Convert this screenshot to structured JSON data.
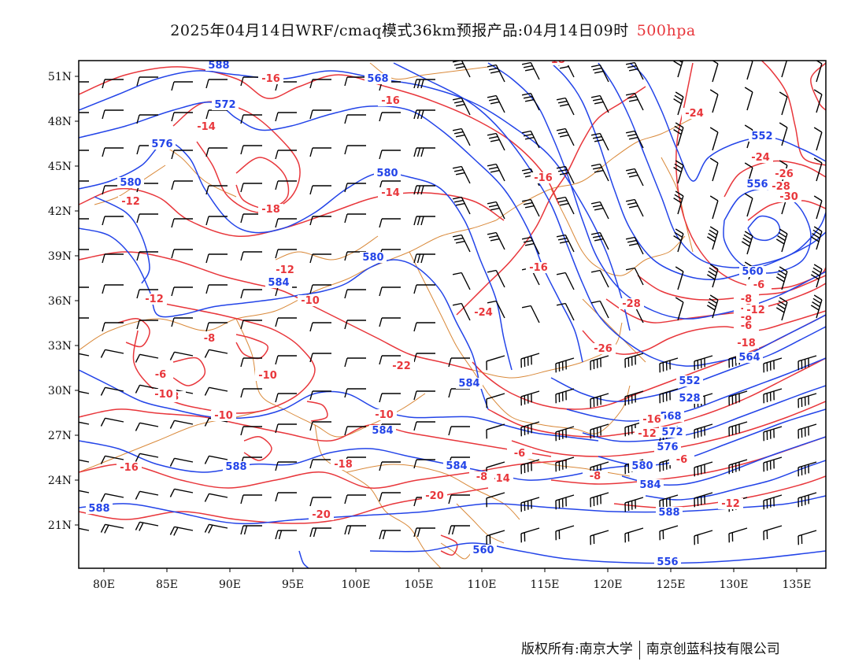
{
  "title": {
    "main": "2025年04月14日WRF/cmaq模式36km预报产品:04月14日09时",
    "level": "500hpa"
  },
  "footer": {
    "copyright": "版权所有:南京大学",
    "company": "南京创蓝科技有限公司"
  },
  "axes": {
    "lat_labels": [
      "51N",
      "48N",
      "45N",
      "42N",
      "39N",
      "36N",
      "33N",
      "30N",
      "27N",
      "24N",
      "21N"
    ],
    "lon_labels": [
      "80E",
      "85E",
      "90E",
      "95E",
      "100E",
      "105E",
      "110E",
      "115E",
      "120E",
      "125E",
      "130E",
      "135E"
    ]
  },
  "legend_colors": {
    "geopotential_height": "#2344e8",
    "temperature": "#e8363b",
    "boundaries": "#d9893a",
    "wind_barbs": "#000000"
  },
  "chart_data": {
    "type": "map",
    "variables": [
      "geopotential height (dagpm)",
      "temperature (°C)",
      "wind barbs"
    ],
    "lon_range": [
      78,
      138
    ],
    "lat_range": [
      18,
      52
    ],
    "height_contour_labels": [
      "588",
      "568",
      "572",
      "576",
      "580",
      "580",
      "580",
      "584",
      "584",
      "584",
      "584",
      "588",
      "588",
      "560",
      "556",
      "552",
      "528",
      "552",
      "556",
      "560",
      "564",
      "568",
      "572",
      "576",
      "580",
      "584",
      "588"
    ],
    "temperature_contour_labels": [
      "-16",
      "-16",
      "-14",
      "-16",
      "-18",
      "-12",
      "-14",
      "-18",
      "-24",
      "-24",
      "-26",
      "-28",
      "-30",
      "-16",
      "-12",
      "-12",
      "-10",
      "-8",
      "-6",
      "-10",
      "-10",
      "-8",
      "-10",
      "-12",
      "-14",
      "-16",
      "-18",
      "-20",
      "-20",
      "-22",
      "-24",
      "-26",
      "-28",
      "-18",
      "-10",
      "-8",
      "-8",
      "-6",
      "-8",
      "-8",
      "-6",
      "-12",
      "-16",
      "-12",
      "-6",
      "-12",
      "-14",
      "-6",
      "-8",
      "-10"
    ]
  }
}
